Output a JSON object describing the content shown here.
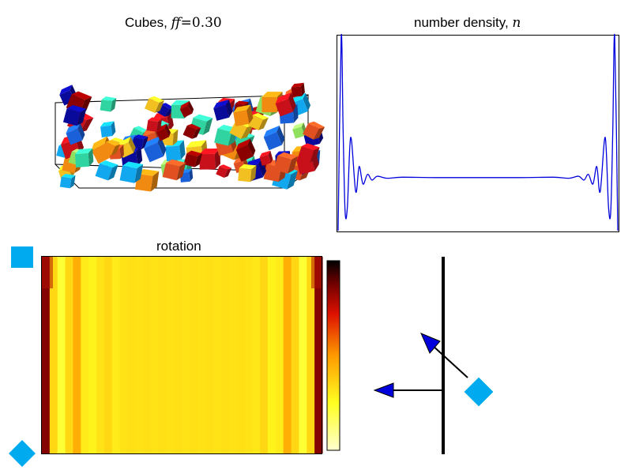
{
  "panels": {
    "cubes": {
      "title_prefix": "Cubes, ",
      "title_var": "ff",
      "title_eq": "=",
      "title_value": "0.30",
      "colors": [
        "#8b0000",
        "#c8101a",
        "#0a0a9a",
        "#1a60d8",
        "#12a8f0",
        "#30d4a0",
        "#90e060",
        "#f2c020",
        "#f08a10",
        "#e05020"
      ]
    },
    "density": {
      "title_prefix": "number density, ",
      "title_var": "n",
      "line_color": "#0000dd"
    },
    "rotation": {
      "title": "rotation",
      "colormap": "hot"
    },
    "diagram": {
      "wall_color": "#000000",
      "arrow_color": "#0000dd",
      "cube_icon_color": "#00aaee"
    }
  },
  "chart_data": [
    {
      "type": "line",
      "title": "number density, n",
      "xlabel": "",
      "ylabel": "",
      "grid": false,
      "x": [
        0.0,
        0.011,
        0.018,
        0.025,
        0.033,
        0.045,
        0.063,
        0.075,
        0.089,
        0.105,
        0.121,
        0.14,
        0.175,
        0.23,
        0.35,
        0.5,
        0.65,
        0.77,
        0.825,
        0.86,
        0.879,
        0.895,
        0.911,
        0.925,
        0.937,
        0.955,
        0.967,
        0.975,
        0.982,
        0.989,
        1.0
      ],
      "y": [
        0.0,
        1.0,
        0.5,
        0.1,
        0.12,
        0.48,
        0.2,
        0.33,
        0.24,
        0.29,
        0.26,
        0.28,
        0.27,
        0.275,
        0.273,
        0.273,
        0.273,
        0.275,
        0.27,
        0.28,
        0.26,
        0.29,
        0.24,
        0.33,
        0.2,
        0.48,
        0.12,
        0.1,
        0.5,
        1.0,
        0.0
      ]
    },
    {
      "type": "heatmap",
      "title": "rotation",
      "colormap": "hot",
      "column_profile": [
        0.85,
        0.35,
        0.22,
        0.35,
        0.45,
        0.3,
        0.28,
        0.32,
        0.35,
        0.3,
        0.32,
        0.33,
        0.32,
        0.33,
        0.32,
        0.33,
        0.32,
        0.33,
        0.32,
        0.33,
        0.32,
        0.33,
        0.32,
        0.33,
        0.32,
        0.33,
        0.32,
        0.31,
        0.35,
        0.28,
        0.3,
        0.45,
        0.35,
        0.22,
        0.35,
        0.85
      ]
    }
  ]
}
